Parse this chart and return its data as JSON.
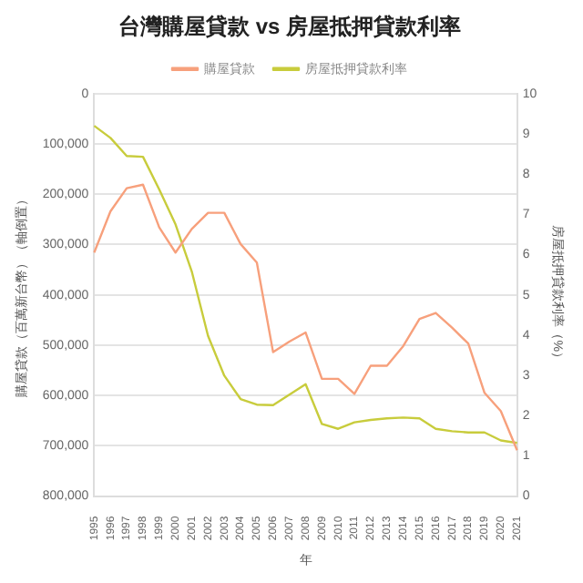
{
  "chart_data": {
    "type": "line",
    "title": "台灣購屋貸款 vs 房屋抵押貸款利率",
    "xlabel": "年",
    "ylabel": "購屋貸款（百萬新台幣）（軸倒置）",
    "y2label": "房屋抵押貸款利率（%）",
    "categories": [
      "1995",
      "1996",
      "1997",
      "1998",
      "1999",
      "2000",
      "2001",
      "2002",
      "2003",
      "2004",
      "2005",
      "2006",
      "2007",
      "2008",
      "2009",
      "2010",
      "2011",
      "2012",
      "2013",
      "2014",
      "2015",
      "2016",
      "2017",
      "2018",
      "2019",
      "2020",
      "2021"
    ],
    "series": [
      {
        "name": "購屋貸款",
        "color": "#f7a07c",
        "values": [
          316000,
          234000,
          188000,
          181000,
          266000,
          316000,
          269000,
          237000,
          237000,
          299000,
          336000,
          514000,
          493000,
          475000,
          567000,
          567000,
          597000,
          541000,
          541000,
          502000,
          448000,
          436000,
          465000,
          497000,
          595000,
          631000,
          709000
        ]
      },
      {
        "name": "房屋抵押貸款利率",
        "color": "#c8cc3c",
        "axis": "y2",
        "values": [
          9.2,
          8.9,
          8.45,
          8.43,
          7.62,
          6.75,
          5.58,
          3.98,
          2.99,
          2.41,
          2.27,
          2.26,
          2.52,
          2.78,
          1.79,
          1.67,
          1.83,
          1.89,
          1.93,
          1.95,
          1.93,
          1.67,
          1.61,
          1.58,
          1.58,
          1.38,
          1.32
        ]
      }
    ],
    "ylim": [
      800000,
      0
    ],
    "yticks": [
      {
        "value": 0,
        "label": "0"
      },
      {
        "value": 100000,
        "label": "100,000"
      },
      {
        "value": 200000,
        "label": "200,000"
      },
      {
        "value": 300000,
        "label": "300,000"
      },
      {
        "value": 400000,
        "label": "400,000"
      },
      {
        "value": 500000,
        "label": "500,000"
      },
      {
        "value": 600000,
        "label": "600,000"
      },
      {
        "value": 700000,
        "label": "700,000"
      },
      {
        "value": 800000,
        "label": "800,000"
      }
    ],
    "y2lim": [
      0,
      10
    ],
    "y2ticks": [
      0,
      1,
      2,
      3,
      4,
      5,
      6,
      7,
      8,
      9,
      10
    ],
    "grid": "y",
    "legend": "top",
    "marker": "none",
    "line_style": "solid"
  }
}
